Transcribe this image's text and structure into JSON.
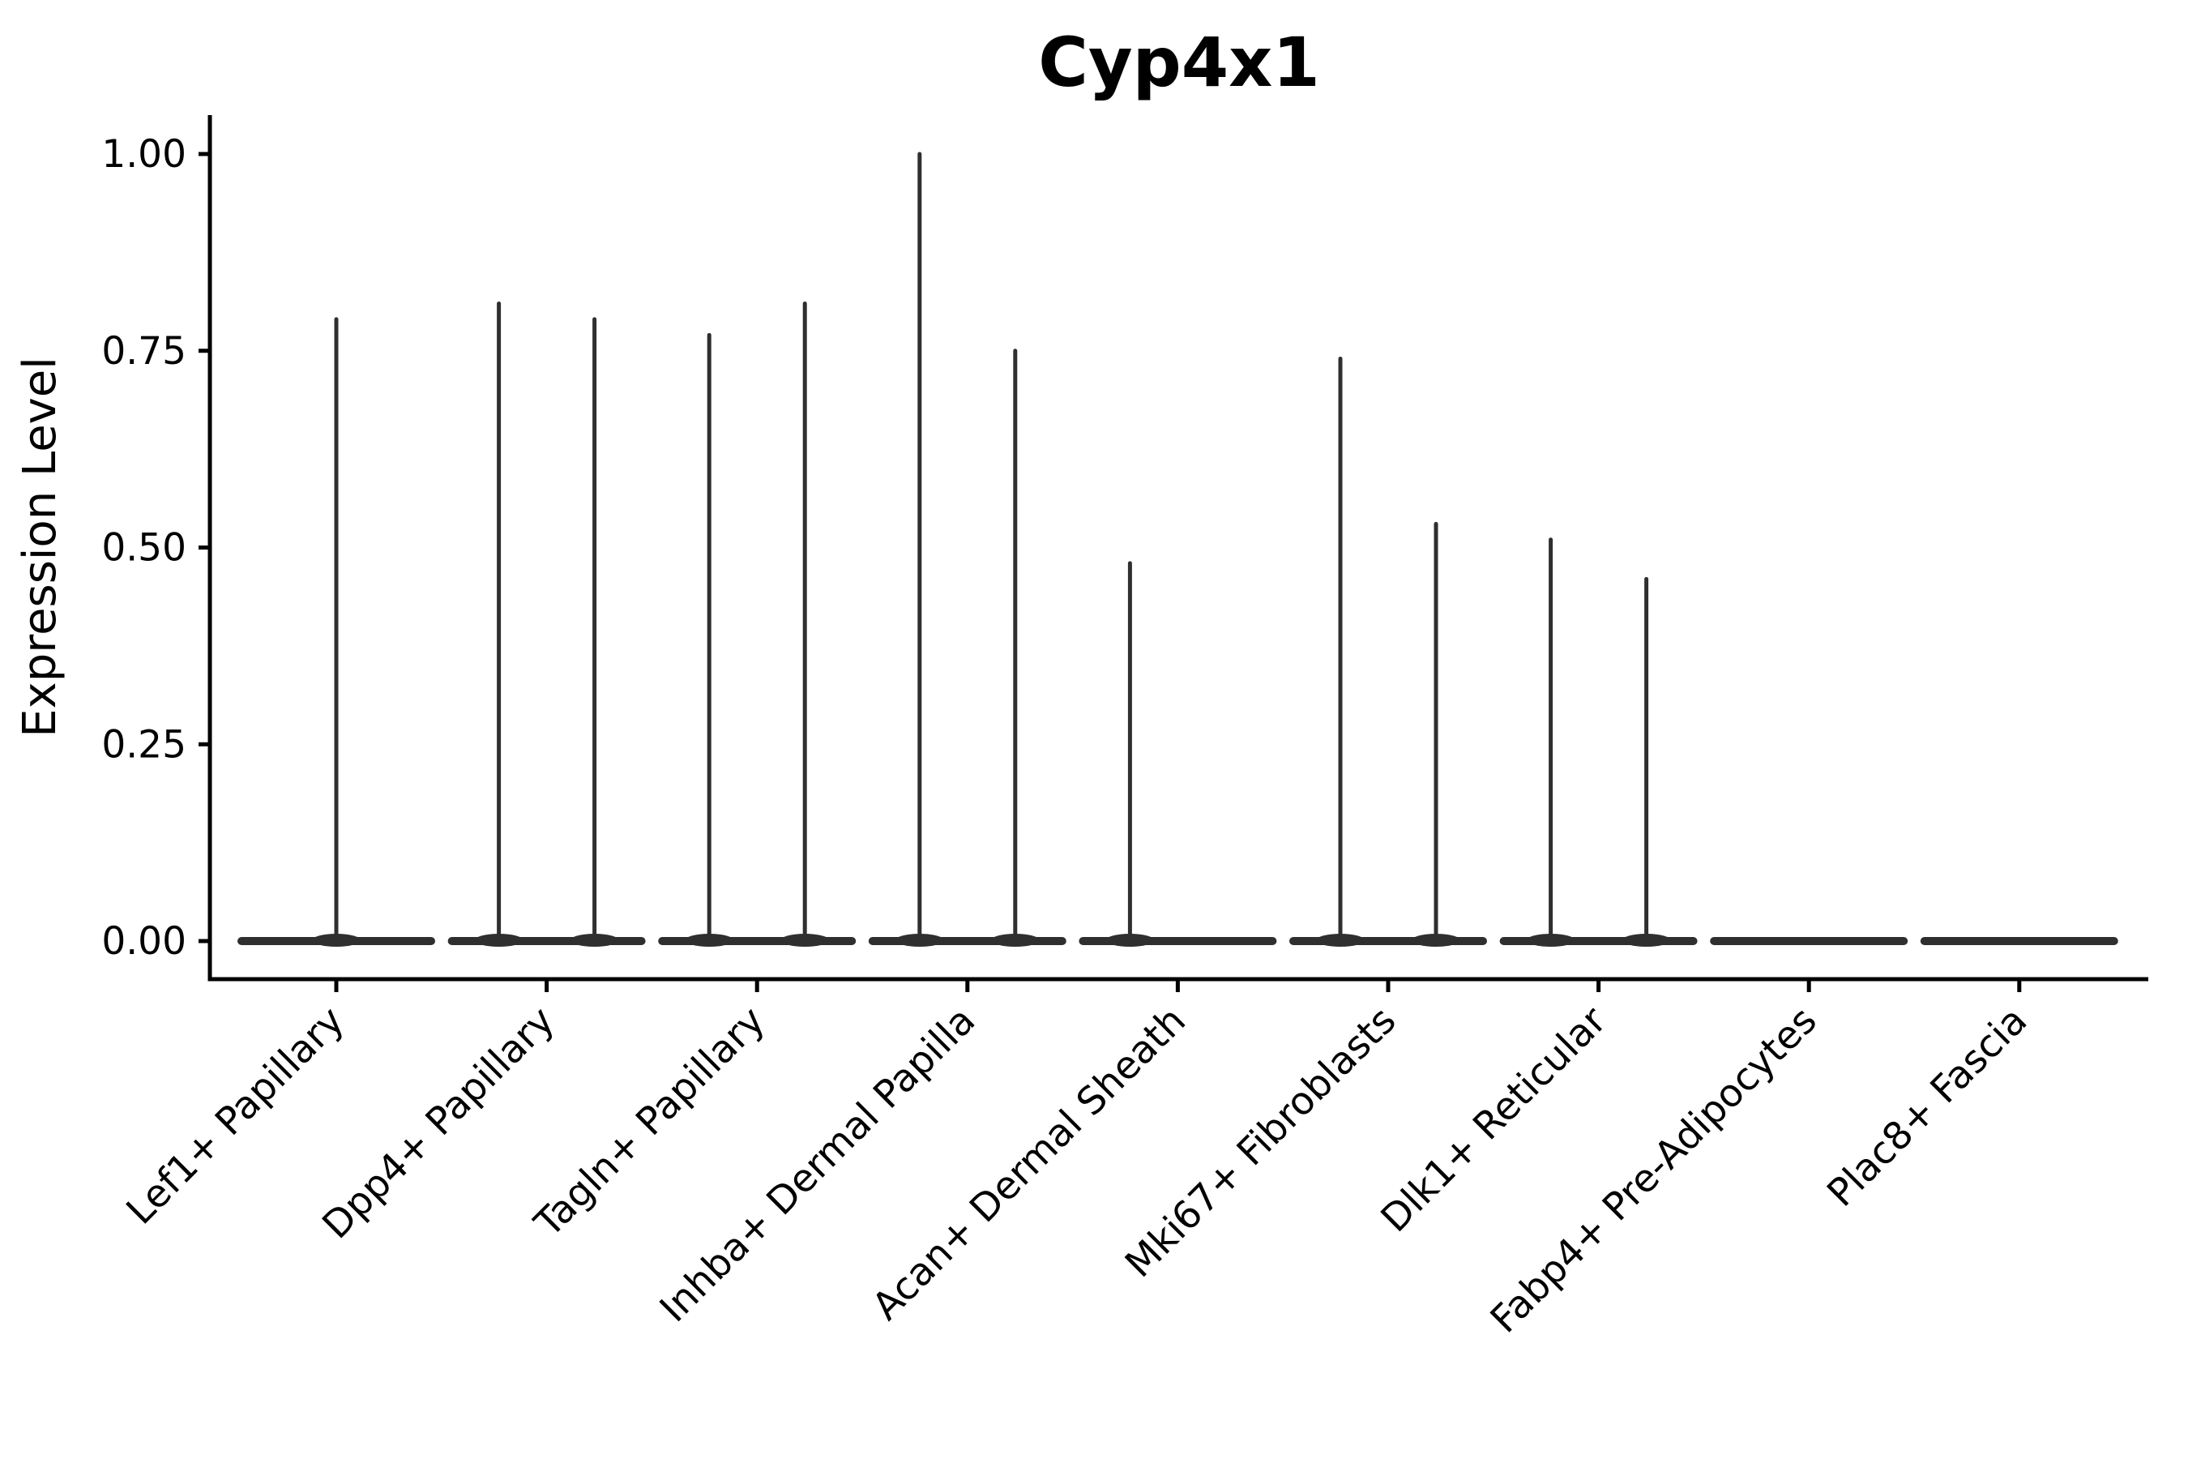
{
  "chart_data": {
    "type": "violin",
    "title": "Cyp4x1",
    "ylabel": "Expression Level",
    "xlabel": "",
    "ylim": [
      0,
      1.05
    ],
    "grid": false,
    "legend": "none",
    "y_ticks": [
      0.0,
      0.25,
      0.5,
      0.75,
      1.0
    ],
    "y_tick_labels": [
      "0.00",
      "0.25",
      "0.50",
      "0.75",
      "1.00"
    ],
    "categories": [
      "Lef1+ Papillary",
      "Dpp4+ Papillary",
      "Tagln+ Papillary",
      "Inhba+ Dermal Papilla",
      "Acan+ Dermal Sheath",
      "Mki67+ Fibroblasts",
      "Dlk1+ Reticular",
      "Fabp4+ Pre-Adipocytes",
      "Plac8+ Fascia"
    ],
    "violins": [
      {
        "category": "Lef1+ Papillary",
        "baseline_value": 0,
        "spikes": [
          {
            "slot": "center",
            "offset": 0,
            "max_expression": 0.79
          }
        ]
      },
      {
        "category": "Dpp4+ Papillary",
        "baseline_value": 0,
        "spikes": [
          {
            "slot": "left",
            "offset": -59,
            "max_expression": 0.81
          },
          {
            "slot": "right",
            "offset": 59,
            "max_expression": 0.79
          }
        ]
      },
      {
        "category": "Tagln+ Papillary",
        "baseline_value": 0,
        "spikes": [
          {
            "slot": "left",
            "offset": -59,
            "max_expression": 0.77
          },
          {
            "slot": "right",
            "offset": 59,
            "max_expression": 0.81
          }
        ]
      },
      {
        "category": "Inhba+ Dermal Papilla",
        "baseline_value": 0,
        "spikes": [
          {
            "slot": "left",
            "offset": -59,
            "max_expression": 1.0
          },
          {
            "slot": "right",
            "offset": 59,
            "max_expression": 0.75
          }
        ]
      },
      {
        "category": "Acan+ Dermal Sheath",
        "baseline_value": 0,
        "spikes": [
          {
            "slot": "left",
            "offset": -59,
            "max_expression": 0.48
          }
        ]
      },
      {
        "category": "Mki67+ Fibroblasts",
        "baseline_value": 0,
        "spikes": [
          {
            "slot": "left",
            "offset": -59,
            "max_expression": 0.74
          },
          {
            "slot": "right",
            "offset": 59,
            "max_expression": 0.53
          }
        ]
      },
      {
        "category": "Dlk1+ Reticular",
        "baseline_value": 0,
        "spikes": [
          {
            "slot": "left",
            "offset": -59,
            "max_expression": 0.51
          },
          {
            "slot": "right",
            "offset": 59,
            "max_expression": 0.46
          }
        ]
      },
      {
        "category": "Fabp4+ Pre-Adipocytes",
        "baseline_value": 0,
        "spikes": []
      },
      {
        "category": "Plac8+ Fascia",
        "baseline_value": 0,
        "spikes": []
      }
    ],
    "colors": {
      "violin": "#2f2f2f",
      "axis": "#000000",
      "text": "#000000",
      "background": "#ffffff"
    }
  }
}
